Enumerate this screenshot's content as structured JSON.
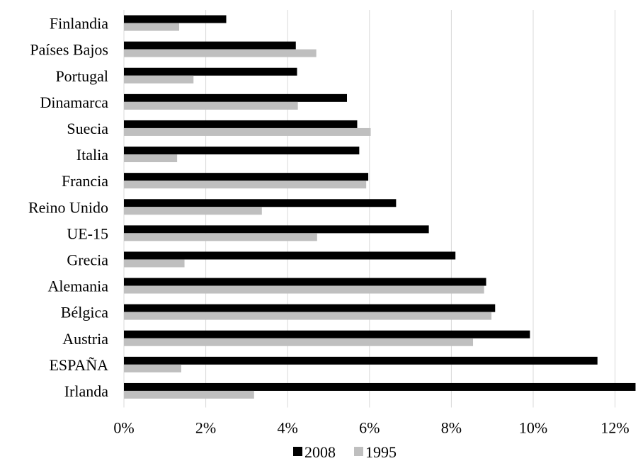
{
  "chart_data": {
    "type": "bar",
    "orientation": "horizontal",
    "categories": [
      "Finlandia",
      "Países Bajos",
      "Portugal",
      "Dinamarca",
      "Suecia",
      "Italia",
      "Francia",
      "Reino Unido",
      "UE-15",
      "Grecia",
      "Alemania",
      "Bélgica",
      "Austria",
      "ESPAÑA",
      "Irlanda"
    ],
    "series": [
      {
        "name": "2008",
        "color": "#000000",
        "values": [
          2.5,
          4.2,
          4.23,
          5.45,
          5.7,
          5.75,
          5.97,
          6.65,
          7.45,
          8.1,
          8.85,
          9.07,
          9.92,
          11.57,
          12.5
        ]
      },
      {
        "name": "1995",
        "color": "#bfbfbf",
        "values": [
          1.35,
          4.7,
          1.7,
          4.25,
          6.03,
          1.3,
          5.92,
          3.37,
          4.72,
          1.48,
          8.8,
          8.98,
          8.53,
          1.4,
          3.18
        ]
      }
    ],
    "x_ticks": [
      "0%",
      "2%",
      "4%",
      "6%",
      "8%",
      "10%",
      "12%"
    ],
    "xlim": [
      0,
      12.5
    ],
    "grid": true,
    "legend_position": "bottom"
  }
}
